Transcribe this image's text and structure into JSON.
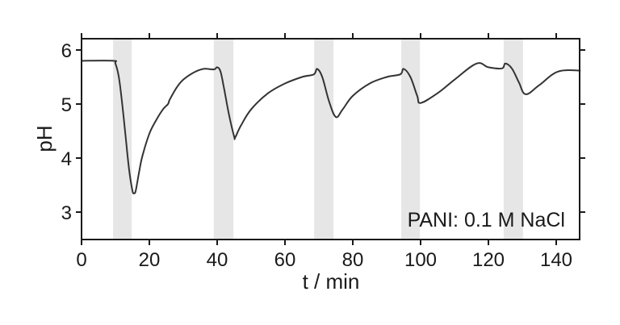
{
  "chart_data": {
    "type": "line",
    "title": "",
    "xlabel": "t / min",
    "ylabel": "pH",
    "xlim": [
      0,
      147
    ],
    "ylim": [
      2.5,
      6.2
    ],
    "xticks": [
      0,
      20,
      40,
      60,
      80,
      100,
      120,
      140
    ],
    "yticks": [
      3,
      4,
      5,
      6
    ],
    "grid": false,
    "legend": null,
    "annotation": "PANI: 0.1 M NaCl",
    "shaded_intervals": [
      {
        "start": 9.3,
        "end": 14.8
      },
      {
        "start": 39.0,
        "end": 44.8
      },
      {
        "start": 68.6,
        "end": 74.3
      },
      {
        "start": 94.3,
        "end": 99.8
      },
      {
        "start": 124.5,
        "end": 130.2
      }
    ],
    "series": [
      {
        "name": "pH",
        "x": [
          0,
          9.3,
          10,
          11,
          12,
          13,
          14,
          15,
          15.5,
          16,
          17,
          18,
          20,
          22,
          24,
          25.5,
          26,
          28,
          30,
          33,
          36,
          39,
          40,
          41,
          42,
          43.5,
          45,
          45.3,
          47,
          50,
          55,
          60,
          65,
          68.5,
          69.5,
          71,
          73,
          75,
          77,
          80,
          85,
          90,
          94,
          95,
          97,
          99,
          100,
          105,
          110,
          116.5,
          120,
          124,
          125,
          127,
          129,
          131,
          135,
          140.5,
          147
        ],
        "values": [
          5.8,
          5.8,
          5.75,
          5.5,
          5.0,
          4.4,
          3.8,
          3.4,
          3.35,
          3.4,
          3.75,
          4.05,
          4.45,
          4.7,
          4.9,
          5.0,
          5.08,
          5.3,
          5.45,
          5.58,
          5.65,
          5.64,
          5.68,
          5.6,
          5.3,
          4.8,
          4.4,
          4.38,
          4.6,
          4.9,
          5.2,
          5.38,
          5.5,
          5.55,
          5.65,
          5.5,
          5.05,
          4.76,
          4.9,
          5.15,
          5.38,
          5.5,
          5.55,
          5.65,
          5.5,
          5.15,
          5.02,
          5.2,
          5.45,
          5.75,
          5.68,
          5.66,
          5.75,
          5.65,
          5.4,
          5.18,
          5.35,
          5.6,
          5.62
        ]
      }
    ]
  },
  "style": {
    "line_color": "#333333",
    "band_color": "#e6e6e6",
    "axis_color": "#1a1a1a"
  },
  "labels": {
    "xlabel": "t / min",
    "ylabel": "pH",
    "annotation": "PANI: 0.1 M NaCl"
  }
}
